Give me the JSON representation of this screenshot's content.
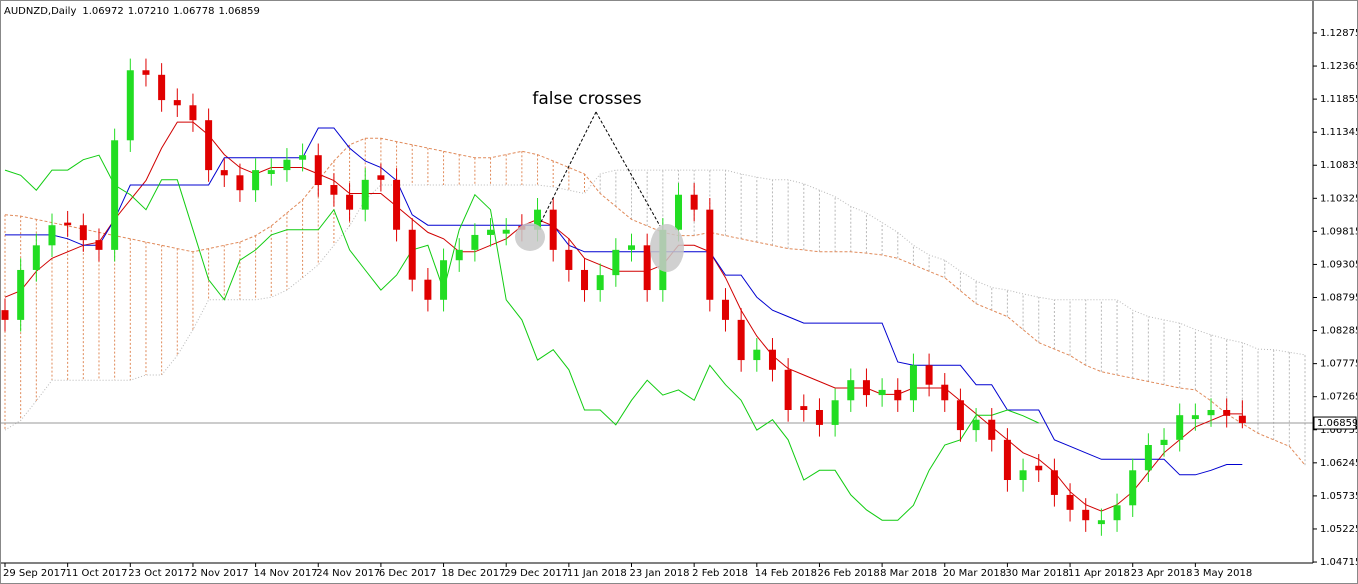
{
  "chart_data": {
    "type": "candlestick",
    "title": "AUDNZD,Daily",
    "ohlc_labels": [
      "1.06972",
      "1.07210",
      "1.06778",
      "1.06859"
    ],
    "annotation": "false crosses",
    "current_price": 1.06859,
    "ylim": [
      1.047,
      1.13353
    ],
    "yticks": [
      1.12875,
      1.12365,
      1.11855,
      1.11345,
      1.10835,
      1.10325,
      1.09815,
      1.09305,
      1.08795,
      1.08285,
      1.07775,
      1.07265,
      1.06755,
      1.06245,
      1.05735,
      1.05225,
      1.04715
    ],
    "categories": [
      "29 Sep 2017",
      null,
      null,
      null,
      "11 Oct 2017",
      null,
      null,
      null,
      "23 Oct 2017",
      null,
      null,
      null,
      "2 Nov 2017",
      null,
      null,
      null,
      "14 Nov 2017",
      null,
      null,
      null,
      "24 Nov 2017",
      null,
      null,
      null,
      "6 Dec 2017",
      null,
      null,
      null,
      "18 Dec 2017",
      null,
      null,
      null,
      "29 Dec 2017",
      null,
      null,
      null,
      "11 Jan 2018",
      null,
      null,
      null,
      "23 Jan 2018",
      null,
      null,
      null,
      "2 Feb 2018",
      null,
      null,
      null,
      "14 Feb 2018",
      null,
      null,
      null,
      "26 Feb 2018",
      null,
      null,
      null,
      "8 Mar 2018",
      null,
      null,
      null,
      "20 Mar 2018",
      null,
      null,
      null,
      "30 Mar 2018",
      null,
      null,
      null,
      "11 Apr 2018",
      null,
      null,
      null,
      "23 Apr 2018",
      null,
      null,
      null,
      "3 May 2018",
      null,
      null,
      null,
      null,
      null,
      null,
      null
    ],
    "up_color": "#22dd22",
    "down_color": "#e00000",
    "open": [
      1.086,
      1.0845,
      1.0922,
      1.096,
      1.0995,
      1.0991,
      1.0968,
      1.0953,
      1.1122,
      1.123,
      1.1223,
      1.1184,
      1.1176,
      1.1153,
      1.1076,
      1.1068,
      1.1045,
      1.107,
      1.1076,
      1.1092,
      1.1099,
      1.1053,
      1.1038,
      1.1015,
      1.1068,
      1.1061,
      1.0984,
      1.0907,
      1.0876,
      1.0937,
      1.0953,
      1.0976,
      1.0978,
      1.099,
      1.0984,
      1.1015,
      1.0953,
      1.0922,
      1.0891,
      1.0914,
      1.0953,
      1.096,
      1.0891,
      1.0984,
      1.1038,
      1.1015,
      1.0876,
      1.0845,
      1.0783,
      1.0799,
      1.0768,
      1.0712,
      1.0706,
      1.0683,
      1.0721,
      1.0752,
      1.0729,
      1.0737,
      1.0721,
      1.0775,
      1.0745,
      1.0721,
      1.0675,
      1.0691,
      1.066,
      1.0598,
      1.062,
      1.0613,
      1.0575,
      1.0552,
      1.053,
      1.0536,
      1.0559,
      1.0613,
      1.0652,
      1.066,
      1.0692,
      1.0698,
      1.0706,
      1.06972,
      null,
      null,
      null,
      null
    ],
    "high": [
      1.0878,
      1.094,
      1.0978,
      1.1009,
      1.1013,
      1.1009,
      1.0986,
      1.114,
      1.1248,
      1.1248,
      1.1241,
      1.1202,
      1.1194,
      1.1171,
      1.1094,
      1.1086,
      1.1094,
      1.1094,
      1.111,
      1.1117,
      1.1117,
      1.1071,
      1.1056,
      1.1079,
      1.1086,
      1.1079,
      1.1002,
      1.0925,
      1.0955,
      1.0971,
      1.0994,
      1.1002,
      1.1002,
      1.1008,
      1.1033,
      1.1033,
      1.0971,
      1.094,
      1.0932,
      1.0971,
      1.0978,
      1.0978,
      1.1002,
      1.1056,
      1.1056,
      1.1033,
      1.0894,
      1.0863,
      1.0817,
      1.0817,
      1.0786,
      1.073,
      1.0724,
      1.0739,
      1.077,
      1.077,
      1.0755,
      1.0755,
      1.0793,
      1.0793,
      1.0763,
      1.0739,
      1.0709,
      1.0709,
      1.0678,
      1.0631,
      1.0638,
      1.0631,
      1.0593,
      1.057,
      1.0554,
      1.0577,
      1.0631,
      1.067,
      1.0678,
      1.0716,
      1.0716,
      1.0724,
      1.0724,
      1.0721,
      null,
      null,
      null,
      null
    ],
    "low": [
      1.0827,
      1.0827,
      1.0904,
      1.0942,
      1.0973,
      1.095,
      1.0935,
      1.0935,
      1.1104,
      1.1205,
      1.1166,
      1.1158,
      1.1135,
      1.1058,
      1.105,
      1.1027,
      1.1027,
      1.1052,
      1.1058,
      1.1074,
      1.1035,
      1.102,
      1.0997,
      1.0997,
      1.1043,
      1.0966,
      1.0889,
      1.0858,
      1.0858,
      1.0919,
      1.0935,
      1.0958,
      1.096,
      1.0966,
      1.0966,
      1.0935,
      1.0904,
      1.0873,
      1.0873,
      1.0896,
      1.0935,
      1.0873,
      1.0873,
      1.0966,
      1.0997,
      1.0858,
      1.0827,
      1.0765,
      1.0765,
      1.075,
      1.0688,
      1.0688,
      1.0665,
      1.0665,
      1.0703,
      1.0711,
      1.0711,
      1.0703,
      1.0703,
      1.0727,
      1.0703,
      1.0657,
      1.0657,
      1.0642,
      1.058,
      1.058,
      1.0595,
      1.0557,
      1.0534,
      1.0518,
      1.0512,
      1.0518,
      1.0541,
      1.0595,
      1.0634,
      1.0642,
      1.0674,
      1.068,
      1.0679,
      1.06778,
      null,
      null,
      null,
      null
    ],
    "close": [
      1.0845,
      1.0922,
      1.096,
      1.0991,
      1.0991,
      1.0968,
      1.0953,
      1.1122,
      1.123,
      1.1223,
      1.1184,
      1.1176,
      1.1153,
      1.1076,
      1.1068,
      1.1045,
      1.1076,
      1.1076,
      1.1092,
      1.1099,
      1.1053,
      1.1038,
      1.1015,
      1.1061,
      1.1061,
      1.0984,
      1.0907,
      1.0876,
      1.0937,
      1.0953,
      1.0976,
      1.0984,
      1.0984,
      1.0984,
      1.1015,
      1.0953,
      1.0922,
      1.0891,
      1.0914,
      1.0953,
      1.096,
      1.0891,
      1.0984,
      1.1038,
      1.1015,
      1.0876,
      1.0845,
      1.0783,
      1.0799,
      1.0768,
      1.0706,
      1.0706,
      1.0683,
      1.0721,
      1.0752,
      1.0729,
      1.0737,
      1.0721,
      1.0775,
      1.0745,
      1.0721,
      1.0675,
      1.0691,
      1.066,
      1.0598,
      1.0613,
      1.0613,
      1.0575,
      1.0552,
      1.0536,
      1.0536,
      1.0559,
      1.0613,
      1.0652,
      1.066,
      1.0698,
      1.0698,
      1.0706,
      1.0697,
      1.06859,
      null,
      null,
      null,
      null
    ],
    "cloud": {
      "up_color": "#e08a5a",
      "down_color": "#b8b8b8",
      "span_a": [
        1.1007,
        1.1005,
        1.1,
        1.0995,
        1.099,
        1.0985,
        1.098,
        1.0975,
        1.097,
        1.0965,
        1.096,
        1.0955,
        1.095,
        1.0955,
        1.096,
        1.0965,
        1.0975,
        1.099,
        1.101,
        1.103,
        1.106,
        1.109,
        1.1115,
        1.1125,
        1.1125,
        1.112,
        1.1115,
        1.111,
        1.1105,
        1.11,
        1.1095,
        1.1095,
        1.11,
        1.1105,
        1.11,
        1.109,
        1.108,
        1.107,
        1.104,
        1.102,
        1.1,
        1.099,
        1.098,
        1.0975,
        1.0975,
        1.098,
        1.0975,
        1.097,
        1.0965,
        1.096,
        1.0955,
        1.0953,
        1.095,
        1.095,
        1.095,
        1.0948,
        1.0945,
        1.094,
        1.093,
        1.092,
        1.091,
        1.089,
        1.087,
        1.086,
        1.085,
        1.083,
        1.081,
        1.08,
        1.079,
        1.0775,
        1.0765,
        1.076,
        1.0755,
        1.075,
        1.0745,
        1.074,
        1.0737,
        1.072,
        1.07,
        1.0685,
        1.067,
        1.066,
        1.065,
        1.0621
      ],
      "span_b": [
        1.0675,
        1.069,
        1.072,
        1.0752,
        1.0752,
        1.0752,
        1.0752,
        1.0752,
        1.0752,
        1.076,
        1.076,
        1.079,
        1.083,
        1.0876,
        1.0876,
        1.0876,
        1.0876,
        1.088,
        1.0891,
        1.091,
        1.093,
        1.096,
        1.099,
        1.103,
        1.1053,
        1.1053,
        1.1053,
        1.1053,
        1.1053,
        1.1053,
        1.1053,
        1.1053,
        1.1053,
        1.1053,
        1.1053,
        1.105,
        1.1045,
        1.104,
        1.107,
        1.1076,
        1.1076,
        1.1076,
        1.1076,
        1.1076,
        1.1076,
        1.1076,
        1.1076,
        1.107,
        1.1065,
        1.1061,
        1.1061,
        1.1055,
        1.1045,
        1.1035,
        1.102,
        1.101,
        1.0995,
        1.098,
        1.096,
        1.0945,
        1.0937,
        1.092,
        1.0905,
        1.0895,
        1.0891,
        1.0885,
        1.088,
        1.0876,
        1.0876,
        1.0876,
        1.0876,
        1.0876,
        1.086,
        1.085,
        1.0845,
        1.084,
        1.083,
        1.0822,
        1.0815,
        1.081,
        1.08,
        1.0799,
        1.0795,
        1.0791
      ]
    },
    "lines": [
      {
        "color": "#d00000",
        "values": [
          1.088,
          1.089,
          1.092,
          1.094,
          1.095,
          1.096,
          1.0965,
          1.1,
          1.103,
          1.106,
          1.111,
          1.115,
          1.115,
          1.113,
          1.11,
          1.108,
          1.107,
          1.108,
          1.108,
          1.108,
          1.107,
          1.106,
          1.104,
          1.104,
          1.104,
          1.102,
          1.1,
          1.098,
          1.097,
          1.095,
          1.095,
          1.096,
          1.097,
          1.099,
          1.1,
          1.099,
          1.097,
          1.094,
          1.093,
          1.092,
          1.092,
          1.092,
          1.093,
          1.096,
          1.096,
          1.095,
          1.091,
          1.086,
          1.082,
          1.079,
          1.077,
          1.076,
          1.075,
          1.074,
          1.074,
          1.074,
          1.073,
          1.073,
          1.074,
          1.074,
          1.074,
          1.072,
          1.07,
          1.068,
          1.066,
          1.064,
          1.063,
          1.061,
          1.058,
          1.056,
          1.055,
          1.056,
          1.058,
          1.061,
          1.064,
          1.066,
          1.068,
          1.069,
          1.07,
          1.07,
          null,
          null,
          null,
          null
        ]
      },
      {
        "color": "#0000d0",
        "values": [
          1.0976,
          1.0976,
          1.0976,
          1.0976,
          1.097,
          1.096,
          1.096,
          1.1,
          1.1053,
          1.1053,
          1.1053,
          1.1053,
          1.1053,
          1.1053,
          1.1095,
          1.1095,
          1.1095,
          1.1095,
          1.1095,
          1.1095,
          1.1141,
          1.1141,
          1.111,
          1.109,
          1.108,
          1.106,
          1.1007,
          1.0991,
          1.0991,
          1.0991,
          1.0991,
          1.0991,
          1.0991,
          1.0991,
          1.0991,
          1.0991,
          1.096,
          1.095,
          1.095,
          1.095,
          1.095,
          1.095,
          1.095,
          1.095,
          1.095,
          1.095,
          1.0914,
          1.0914,
          1.088,
          1.086,
          1.085,
          1.084,
          1.084,
          1.084,
          1.084,
          1.084,
          1.084,
          1.078,
          1.0775,
          1.0775,
          1.0775,
          1.0775,
          1.0745,
          1.0745,
          1.0706,
          1.0706,
          1.0706,
          1.066,
          1.065,
          1.064,
          1.063,
          1.063,
          1.063,
          1.063,
          1.063,
          1.0606,
          1.0606,
          1.0613,
          1.0622,
          1.0622,
          null,
          null,
          null,
          null
        ]
      },
      {
        "color": "#11cc11",
        "values": [
          1.1076,
          1.1068,
          1.1045,
          1.1076,
          1.1076,
          1.1092,
          1.1099,
          1.1053,
          1.1038,
          1.1015,
          1.1061,
          1.1061,
          1.0984,
          1.0907,
          1.0876,
          1.0937,
          1.0953,
          1.0976,
          1.0984,
          1.0984,
          1.0984,
          1.1015,
          1.0953,
          1.0922,
          1.0891,
          1.0914,
          1.0953,
          1.096,
          1.0891,
          1.0984,
          1.1038,
          1.1015,
          1.0876,
          1.0845,
          1.0783,
          1.0799,
          1.0768,
          1.0706,
          1.0706,
          1.0683,
          1.0721,
          1.0752,
          1.0729,
          1.0737,
          1.0721,
          1.0775,
          1.0745,
          1.0721,
          1.0675,
          1.0691,
          1.066,
          1.0598,
          1.0613,
          1.0613,
          1.0575,
          1.0552,
          1.0536,
          1.0536,
          1.0559,
          1.0613,
          1.0652,
          1.066,
          1.0698,
          1.0698,
          1.0706,
          1.0697,
          1.06859,
          null,
          null,
          null,
          null,
          null,
          null,
          null,
          null,
          null,
          null,
          null,
          null,
          null,
          null,
          null,
          null,
          null
        ]
      }
    ]
  }
}
